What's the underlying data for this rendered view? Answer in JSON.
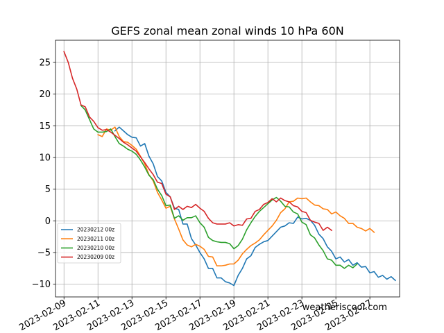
{
  "watermark": "weatheriscool.com",
  "chart_data": {
    "type": "line",
    "title": "GEFS zonal mean zonal winds 10 hPa 60N",
    "xlabel": "",
    "ylabel": "",
    "x_axis": "date (6-hourly steps starting 2023-02-09)",
    "xlim": [
      "2023-02-08T12:00",
      "2023-02-28T18:00"
    ],
    "ylim": [
      -12,
      28.5
    ],
    "x_ticks": [
      "2023-02-09",
      "2023-02-11",
      "2023-02-13",
      "2023-02-15",
      "2023-02-17",
      "2023-02-19",
      "2023-02-21",
      "2023-02-23",
      "2023-02-25",
      "2023-02-27"
    ],
    "y_ticks": [
      -10,
      -5,
      0,
      5,
      10,
      15,
      20,
      25
    ],
    "grid": true,
    "legend_position": "lower-left",
    "series": [
      {
        "name": "20230212 00z",
        "color": "#1f77b4",
        "start": "2023-02-12T00:00",
        "step_hours": 6,
        "values": [
          14.2,
          14.8,
          14.2,
          13.6,
          13.2,
          13.1,
          11.8,
          12.2,
          10.2,
          9.0,
          7.0,
          6.3,
          4.5,
          3.8,
          2.0,
          1.8,
          -0.5,
          -0.5,
          -2.8,
          -3.8,
          -5.0,
          -6.0,
          -7.5,
          -7.5,
          -9.0,
          -9.0,
          -9.6,
          -9.8,
          -10.2,
          -8.6,
          -7.5,
          -6.0,
          -5.5,
          -4.2,
          -3.7,
          -3.3,
          -3.1,
          -2.4,
          -1.7,
          -1.0,
          -0.8,
          -0.3,
          -0.4,
          0.6,
          0.3,
          0.4,
          0.1,
          -0.7,
          -2.1,
          -2.8,
          -4.1,
          -4.8,
          -6.0,
          -5.7,
          -6.5,
          -6.1,
          -7.0,
          -6.6,
          -7.3,
          -7.2,
          -8.2,
          -8.0,
          -8.9,
          -8.6,
          -9.2,
          -8.8,
          -9.4
        ]
      },
      {
        "name": "20230211 00z",
        "color": "#ff7f0e",
        "start": "2023-02-11T00:00",
        "step_hours": 6,
        "values": [
          13.6,
          13.3,
          14.5,
          14.3,
          14.8,
          13.3,
          12.5,
          12.4,
          11.9,
          11.3,
          10.2,
          9.0,
          7.3,
          6.3,
          4.5,
          3.3,
          2.0,
          2.3,
          0.3,
          -1.3,
          -3.0,
          -3.8,
          -4.1,
          -3.7,
          -4.0,
          -4.5,
          -5.6,
          -5.7,
          -7.1,
          -7.1,
          -7.0,
          -6.8,
          -6.8,
          -6.2,
          -5.2,
          -4.5,
          -3.9,
          -3.5,
          -3.0,
          -2.2,
          -1.5,
          -0.8,
          0.1,
          1.3,
          1.9,
          3.0,
          3.1,
          3.6,
          3.5,
          3.6,
          3.0,
          2.5,
          2.4,
          1.9,
          1.8,
          1.1,
          1.4,
          0.8,
          0.4,
          -0.4,
          -0.4,
          -1.0,
          -1.2,
          -1.6,
          -1.2,
          -1.8
        ]
      },
      {
        "name": "20230210 00z",
        "color": "#2ca02c",
        "start": "2023-02-10T00:00",
        "step_hours": 6,
        "values": [
          18.2,
          17.5,
          16.0,
          14.5,
          14.0,
          14.0,
          14.1,
          14.5,
          13.3,
          12.2,
          11.8,
          11.3,
          11.0,
          10.5,
          9.6,
          8.5,
          7.2,
          6.5,
          5.0,
          4.0,
          2.4,
          2.5,
          0.4,
          0.8,
          0.1,
          0.5,
          0.5,
          0.8,
          -0.3,
          -1.0,
          -2.6,
          -3.1,
          -3.3,
          -3.4,
          -3.4,
          -3.6,
          -4.4,
          -3.9,
          -2.9,
          -1.4,
          -0.3,
          0.7,
          1.5,
          2.1,
          2.7,
          3.3,
          3.7,
          3.1,
          2.3,
          2.2,
          1.4,
          1.1,
          -0.2,
          -0.6,
          -2.2,
          -2.7,
          -3.8,
          -4.7,
          -6.0,
          -6.2,
          -7.0,
          -7.0,
          -7.5,
          -7.0,
          -7.4,
          -6.8
        ]
      },
      {
        "name": "20230209 00z",
        "color": "#d62728",
        "start": "2023-02-09T00:00",
        "step_hours": 6,
        "values": [
          26.7,
          25.0,
          22.5,
          20.8,
          18.3,
          18.0,
          16.4,
          15.7,
          14.7,
          14.3,
          14.4,
          14.0,
          13.5,
          13.0,
          12.4,
          12.0,
          11.5,
          11.0,
          10.1,
          9.2,
          8.2,
          7.3,
          6.1,
          5.9,
          4.2,
          3.8,
          1.8,
          2.3,
          1.8,
          2.3,
          2.1,
          2.6,
          2.0,
          1.5,
          0.4,
          -0.3,
          -0.5,
          -0.5,
          -0.5,
          -0.3,
          -0.8,
          -0.6,
          -0.7,
          0.3,
          0.4,
          1.5,
          1.8,
          2.6,
          2.9,
          3.5,
          3.0,
          3.6,
          3.2,
          3.0,
          2.4,
          2.2,
          1.5,
          1.3,
          0.1,
          -0.2,
          -0.4,
          -1.5,
          -1.0,
          -1.5
        ]
      }
    ]
  }
}
